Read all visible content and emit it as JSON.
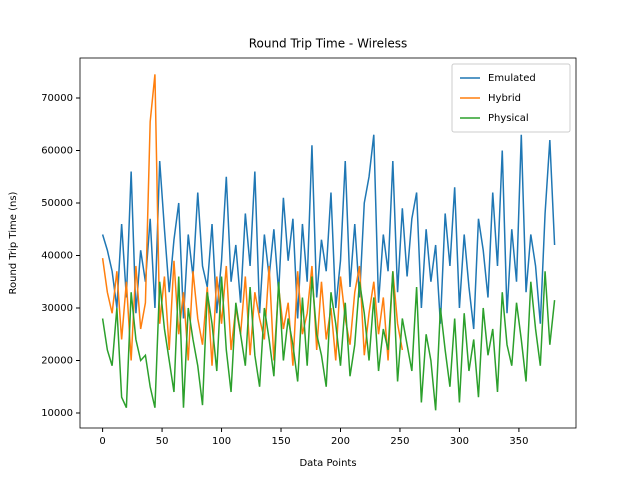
{
  "chart_data": {
    "type": "line",
    "title": "Round Trip Time - Wireless",
    "xlabel": "Data Points",
    "ylabel": "Round Trip Time (ns)",
    "x": [
      0,
      4,
      8,
      12,
      16,
      20,
      24,
      28,
      32,
      36,
      40,
      44,
      48,
      52,
      56,
      60,
      64,
      68,
      72,
      76,
      80,
      84,
      88,
      92,
      96,
      100,
      104,
      108,
      112,
      116,
      120,
      124,
      128,
      132,
      136,
      140,
      144,
      148,
      152,
      156,
      160,
      164,
      168,
      172,
      176,
      180,
      184,
      188,
      192,
      196,
      200,
      204,
      208,
      212,
      216,
      220,
      224,
      228,
      232,
      236,
      240,
      244,
      248,
      252,
      256,
      260,
      264,
      268,
      272,
      276,
      280,
      284,
      288,
      292,
      296,
      300,
      304,
      308,
      312,
      316,
      320,
      324,
      328,
      332,
      336,
      340,
      344,
      348,
      352,
      356,
      360,
      364,
      368,
      372,
      376,
      380
    ],
    "series": [
      {
        "name": "Emulated",
        "color": "#1f77b4",
        "values": [
          44000,
          41000,
          37000,
          30000,
          46000,
          32000,
          56000,
          29000,
          41000,
          35000,
          47000,
          30000,
          58000,
          45000,
          33000,
          43000,
          50000,
          28000,
          44000,
          36000,
          52000,
          38000,
          34000,
          46000,
          29000,
          39000,
          55000,
          35000,
          42000,
          31000,
          48000,
          38000,
          56000,
          29000,
          44000,
          36000,
          45000,
          33000,
          51000,
          39000,
          47000,
          28000,
          46000,
          35000,
          61000,
          32000,
          43000,
          37000,
          52000,
          30000,
          39000,
          58000,
          34000,
          46000,
          32000,
          50000,
          55000,
          63000,
          31000,
          44000,
          37000,
          58000,
          33000,
          49000,
          36000,
          47000,
          52000,
          30000,
          45000,
          35000,
          42000,
          27000,
          48000,
          38000,
          53000,
          30000,
          44000,
          34000,
          26000,
          47000,
          41000,
          32000,
          52000,
          38000,
          60000,
          29000,
          45000,
          35000,
          63000,
          33000,
          44000,
          38000,
          27000,
          48000,
          62000,
          42000
        ]
      },
      {
        "name": "Hybrid",
        "color": "#ff7f0e",
        "values": [
          39500,
          33000,
          29000,
          37000,
          24000,
          35000,
          20000,
          38000,
          26000,
          31000,
          65500,
          74500,
          27000,
          36000,
          22000,
          39000,
          25000,
          33000,
          20000,
          37000,
          28000,
          23000,
          34000,
          19000,
          36000,
          27000,
          38000,
          22000,
          30000,
          25000,
          36000,
          21000,
          33000,
          28000,
          24000,
          38000,
          20000,
          34000,
          26000,
          31000,
          19000,
          37000,
          25000,
          29000,
          38000,
          22000,
          35000,
          24000,
          30000,
          20000,
          36000,
          28000,
          23000,
          33000,
          38000,
          21000,
          29000,
          35000,
          25000,
          32000,
          20000,
          37000,
          27000,
          22000,
          null,
          null,
          null,
          null,
          null,
          null,
          null,
          null,
          null,
          null,
          null,
          null,
          null,
          null,
          null,
          null,
          null,
          null,
          null,
          null,
          null,
          null,
          null,
          null,
          null,
          null,
          null,
          null,
          null,
          null,
          null,
          null
        ]
      },
      {
        "name": "Physical",
        "color": "#2ca02c",
        "values": [
          28000,
          22000,
          19000,
          30000,
          13000,
          11000,
          33000,
          24000,
          20000,
          21000,
          15000,
          11000,
          35000,
          26000,
          20000,
          14000,
          36000,
          11000,
          30000,
          24000,
          19000,
          11500,
          33000,
          27000,
          18000,
          36000,
          22000,
          14000,
          31000,
          25000,
          19000,
          34000,
          21000,
          15000,
          30000,
          24000,
          17000,
          35000,
          20000,
          28000,
          23000,
          16000,
          32000,
          19000,
          36000,
          25000,
          21000,
          15000,
          33000,
          27000,
          19000,
          31000,
          17000,
          23000,
          35000,
          29000,
          20000,
          32000,
          18000,
          26000,
          22000,
          37000,
          16000,
          28000,
          23000,
          18000,
          34000,
          12000,
          25000,
          20000,
          10500,
          30000,
          22000,
          15000,
          28000,
          12000,
          29000,
          18000,
          24000,
          13000,
          30000,
          21000,
          26000,
          14000,
          33000,
          23000,
          19000,
          31000,
          24000,
          16000,
          35000,
          26000,
          19000,
          37000,
          23000,
          31500
        ]
      }
    ],
    "xlim": [
      -19,
      398
    ],
    "ylim": [
      7140,
      77620
    ],
    "xticks": [
      0,
      50,
      100,
      150,
      200,
      250,
      300,
      350
    ],
    "yticks": [
      10000,
      20000,
      30000,
      40000,
      50000,
      60000,
      70000
    ],
    "legend": "upper right"
  }
}
